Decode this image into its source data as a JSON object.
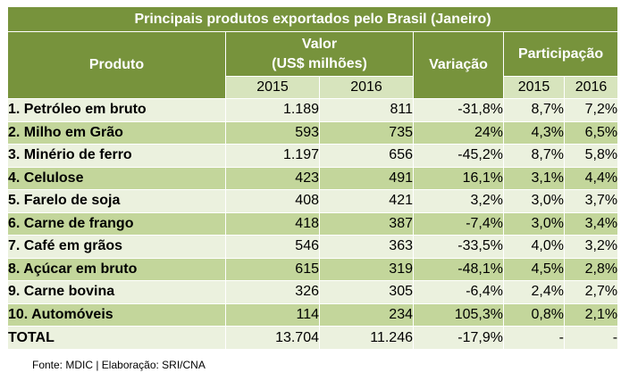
{
  "chart_data": {
    "type": "table",
    "title": "Principais produtos exportados pelo Brasil  (Janeiro)",
    "headers": {
      "produto": "Produto",
      "valor_line1": "Valor",
      "valor_line2": "(US$ milhões)",
      "variacao": "Variação",
      "participacao": "Participação",
      "years": [
        "2015",
        "2016"
      ]
    },
    "rows": [
      {
        "produto": "1. Petróleo em bruto",
        "v2015": "1.189",
        "v2016": "811",
        "variacao": "-31,8%",
        "p2015": "8,7%",
        "p2016": "7,2%"
      },
      {
        "produto": "2. Milho em Grão",
        "v2015": "593",
        "v2016": "735",
        "variacao": "24%",
        "p2015": "4,3%",
        "p2016": "6,5%"
      },
      {
        "produto": "3. Minério de ferro",
        "v2015": "1.197",
        "v2016": "656",
        "variacao": "-45,2%",
        "p2015": "8,7%",
        "p2016": "5,8%"
      },
      {
        "produto": "4. Celulose",
        "v2015": "423",
        "v2016": "491",
        "variacao": "16,1%",
        "p2015": "3,1%",
        "p2016": "4,4%"
      },
      {
        "produto": "5. Farelo de soja",
        "v2015": "408",
        "v2016": "421",
        "variacao": "3,2%",
        "p2015": "3,0%",
        "p2016": "3,7%"
      },
      {
        "produto": "6. Carne de frango",
        "v2015": "418",
        "v2016": "387",
        "variacao": "-7,4%",
        "p2015": "3,0%",
        "p2016": "3,4%"
      },
      {
        "produto": "7. Café em grãos",
        "v2015": "546",
        "v2016": "363",
        "variacao": "-33,5%",
        "p2015": "4,0%",
        "p2016": "3,2%"
      },
      {
        "produto": "8. Açúcar em bruto",
        "v2015": "615",
        "v2016": "319",
        "variacao": "-48,1%",
        "p2015": "4,5%",
        "p2016": "2,8%"
      },
      {
        "produto": "9. Carne bovina",
        "v2015": "326",
        "v2016": "305",
        "variacao": "-6,4%",
        "p2015": "2,4%",
        "p2016": "2,7%"
      },
      {
        "produto": "10. Automóveis",
        "v2015": "114",
        "v2016": "234",
        "variacao": "105,3%",
        "p2015": "0,8%",
        "p2016": "2,1%"
      }
    ],
    "total": {
      "produto": "TOTAL",
      "v2015": "13.704",
      "v2016": "11.246",
      "variacao": "-17,9%",
      "p2015": "-",
      "p2016": "-"
    },
    "source": "Fonte: MDIC | Elaboração: SRI/CNA"
  },
  "colors": {
    "header": "#77933c",
    "subheader": "#d7e4bd",
    "row_light": "#ebf1de",
    "row_dark": "#c3d69b"
  }
}
